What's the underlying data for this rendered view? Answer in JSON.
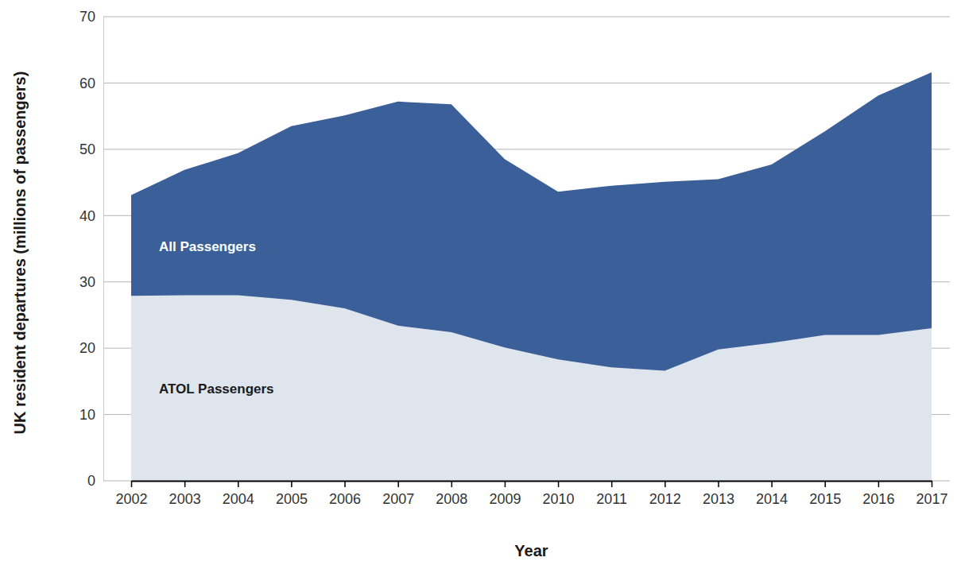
{
  "chart_data": {
    "type": "area",
    "x_label": "Year",
    "y_label": "UK resident departures (millions of passengers)",
    "x": [
      2002,
      2003,
      2004,
      2005,
      2006,
      2007,
      2008,
      2009,
      2010,
      2011,
      2012,
      2013,
      2014,
      2015,
      2016,
      2017
    ],
    "xlim": [
      2002,
      2017
    ],
    "xticks": [
      2002,
      2003,
      2004,
      2005,
      2006,
      2007,
      2008,
      2009,
      2010,
      2011,
      2012,
      2013,
      2014,
      2015,
      2016,
      2017
    ],
    "ylim": [
      0,
      70
    ],
    "yticks": [
      0,
      10,
      20,
      30,
      40,
      50,
      60,
      70
    ],
    "grid": true,
    "series": [
      {
        "name": "All Passengers",
        "color": "#3b5f98",
        "values": [
          43.1,
          46.9,
          49.4,
          53.5,
          55.1,
          57.2,
          56.8,
          48.5,
          43.6,
          44.5,
          45.1,
          45.5,
          47.7,
          52.7,
          58.1,
          61.6
        ]
      },
      {
        "name": "ATOL Passengers",
        "color": "#eceff3",
        "values": [
          27.9,
          28.0,
          28.0,
          27.3,
          26.0,
          23.4,
          22.4,
          20.1,
          18.3,
          17.1,
          16.6,
          19.8,
          20.8,
          22.0,
          22.0,
          23.0
        ]
      }
    ]
  }
}
